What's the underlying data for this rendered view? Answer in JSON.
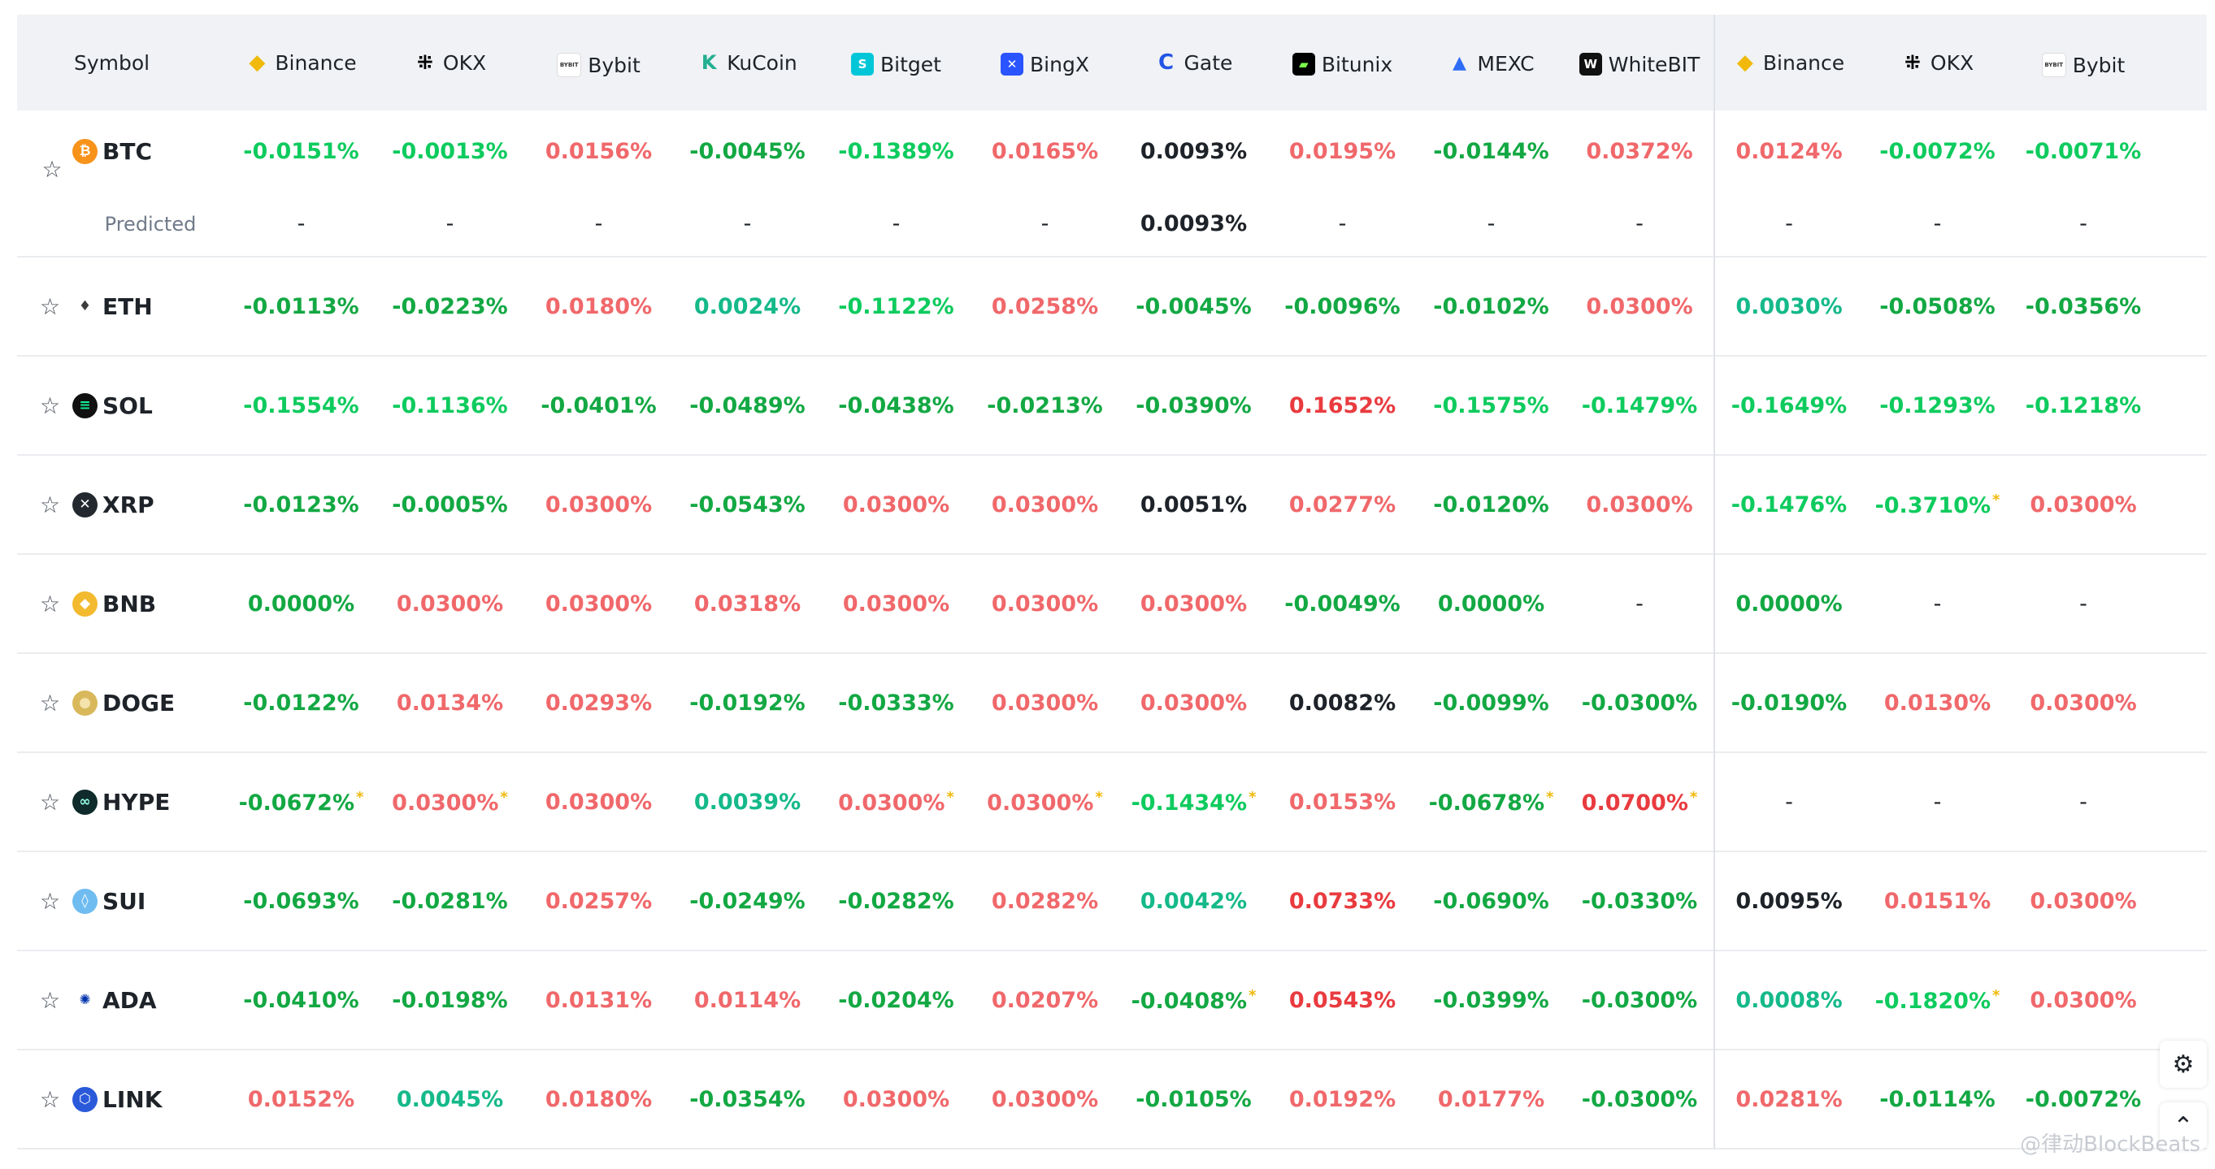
{
  "header": {
    "symbol_label": "Symbol",
    "exchanges": [
      {
        "name": "Binance",
        "icon": "binance-icon",
        "color": "#f0b90b",
        "glyph": "◆"
      },
      {
        "name": "OKX",
        "icon": "okx-icon",
        "color": "#000000",
        "glyph": "⁜"
      },
      {
        "name": "Bybit",
        "icon": "bybit-icon",
        "color": "#ffffff",
        "glyph": "BYBIT"
      },
      {
        "name": "KuCoin",
        "icon": "kucoin-icon",
        "color": "#23af91",
        "glyph": "K"
      },
      {
        "name": "Bitget",
        "icon": "bitget-icon",
        "color": "#00c6d8",
        "glyph": "S"
      },
      {
        "name": "BingX",
        "icon": "bingx-icon",
        "color": "#2a54ff",
        "glyph": "✕"
      },
      {
        "name": "Gate",
        "icon": "gate-icon",
        "color": "#2354e6",
        "glyph": "C"
      },
      {
        "name": "Bitunix",
        "icon": "bitunix-icon",
        "color": "#000000",
        "glyph": "▰"
      },
      {
        "name": "MEXC",
        "icon": "mexc-icon",
        "color": "#2f6cf6",
        "glyph": "▲"
      },
      {
        "name": "WhiteBIT",
        "icon": "whitebit-icon",
        "color": "#111111",
        "glyph": "W"
      },
      {
        "name": "Binance",
        "icon": "binance-icon",
        "color": "#f0b90b",
        "glyph": "◆"
      },
      {
        "name": "OKX",
        "icon": "okx-icon",
        "color": "#000000",
        "glyph": "⁜"
      },
      {
        "name": "Bybit",
        "icon": "bybit-icon",
        "color": "#ffffff",
        "glyph": "BYBIT"
      }
    ]
  },
  "colors": {
    "negative": "#0ecb5e",
    "negative_dark": "#13a843",
    "teal": "#15b98a",
    "positive": "#f0686b",
    "positive_dark": "#e93b3f",
    "neutral": "#1e2329",
    "marker": "#f0b90b"
  },
  "btc": {
    "symbol": "BTC",
    "icon": "bitcoin-icon",
    "icon_color": "#f7931a",
    "values": [
      {
        "v": "-0.0151%",
        "c": "neg"
      },
      {
        "v": "-0.0013%",
        "c": "neg"
      },
      {
        "v": "0.0156%",
        "c": "pos"
      },
      {
        "v": "-0.0045%",
        "c": "negd"
      },
      {
        "v": "-0.1389%",
        "c": "neg"
      },
      {
        "v": "0.0165%",
        "c": "pos"
      },
      {
        "v": "0.0093%",
        "c": "neutral"
      },
      {
        "v": "0.0195%",
        "c": "pos"
      },
      {
        "v": "-0.0144%",
        "c": "negd"
      },
      {
        "v": "0.0372%",
        "c": "pos"
      },
      {
        "v": "0.0124%",
        "c": "pos"
      },
      {
        "v": "-0.0072%",
        "c": "neg"
      },
      {
        "v": "-0.0071%",
        "c": "neg"
      }
    ],
    "predicted_label": "Predicted",
    "predicted": [
      "-",
      "-",
      "-",
      "-",
      "-",
      "-",
      "0.0093%",
      "-",
      "-",
      "-",
      "-",
      "-",
      "-"
    ]
  },
  "rows": [
    {
      "symbol": "ETH",
      "icon": "ethereum-icon",
      "icon_color": "#ffffff",
      "glyph": "♦",
      "glyph_color": "#3c3c3d",
      "values": [
        {
          "v": "-0.0113%",
          "c": "negd"
        },
        {
          "v": "-0.0223%",
          "c": "negd"
        },
        {
          "v": "0.0180%",
          "c": "pos"
        },
        {
          "v": "0.0024%",
          "c": "teal"
        },
        {
          "v": "-0.1122%",
          "c": "neg"
        },
        {
          "v": "0.0258%",
          "c": "pos"
        },
        {
          "v": "-0.0045%",
          "c": "negd"
        },
        {
          "v": "-0.0096%",
          "c": "negd"
        },
        {
          "v": "-0.0102%",
          "c": "negd"
        },
        {
          "v": "0.0300%",
          "c": "pos"
        },
        {
          "v": "0.0030%",
          "c": "teal"
        },
        {
          "v": "-0.0508%",
          "c": "negd"
        },
        {
          "v": "-0.0356%",
          "c": "negd"
        }
      ]
    },
    {
      "symbol": "SOL",
      "icon": "solana-icon",
      "icon_color": "#111111",
      "glyph": "≡",
      "glyph_color": "#14f195",
      "values": [
        {
          "v": "-0.1554%",
          "c": "neg"
        },
        {
          "v": "-0.1136%",
          "c": "neg"
        },
        {
          "v": "-0.0401%",
          "c": "negd"
        },
        {
          "v": "-0.0489%",
          "c": "negd"
        },
        {
          "v": "-0.0438%",
          "c": "negd"
        },
        {
          "v": "-0.0213%",
          "c": "negd"
        },
        {
          "v": "-0.0390%",
          "c": "negd"
        },
        {
          "v": "0.1652%",
          "c": "posd"
        },
        {
          "v": "-0.1575%",
          "c": "neg"
        },
        {
          "v": "-0.1479%",
          "c": "neg"
        },
        {
          "v": "-0.1649%",
          "c": "neg"
        },
        {
          "v": "-0.1293%",
          "c": "neg"
        },
        {
          "v": "-0.1218%",
          "c": "neg"
        }
      ]
    },
    {
      "symbol": "XRP",
      "icon": "xrp-icon",
      "icon_color": "#23292f",
      "glyph": "✕",
      "glyph_color": "#ffffff",
      "values": [
        {
          "v": "-0.0123%",
          "c": "negd"
        },
        {
          "v": "-0.0005%",
          "c": "negd"
        },
        {
          "v": "0.0300%",
          "c": "pos"
        },
        {
          "v": "-0.0543%",
          "c": "negd"
        },
        {
          "v": "0.0300%",
          "c": "pos"
        },
        {
          "v": "0.0300%",
          "c": "pos"
        },
        {
          "v": "0.0051%",
          "c": "neutral"
        },
        {
          "v": "0.0277%",
          "c": "pos"
        },
        {
          "v": "-0.0120%",
          "c": "negd"
        },
        {
          "v": "0.0300%",
          "c": "pos"
        },
        {
          "v": "-0.1476%",
          "c": "neg"
        },
        {
          "v": "-0.3710%",
          "c": "neg",
          "m": "*"
        },
        {
          "v": "0.0300%",
          "c": "pos"
        }
      ]
    },
    {
      "symbol": "BNB",
      "icon": "bnb-icon",
      "icon_color": "#f3ba2f",
      "glyph": "◆",
      "glyph_color": "#ffffff",
      "values": [
        {
          "v": "0.0000%",
          "c": "negd"
        },
        {
          "v": "0.0300%",
          "c": "pos"
        },
        {
          "v": "0.0300%",
          "c": "pos"
        },
        {
          "v": "0.0318%",
          "c": "pos"
        },
        {
          "v": "0.0300%",
          "c": "pos"
        },
        {
          "v": "0.0300%",
          "c": "pos"
        },
        {
          "v": "0.0300%",
          "c": "pos"
        },
        {
          "v": "-0.0049%",
          "c": "negd"
        },
        {
          "v": "0.0000%",
          "c": "negd"
        },
        {
          "v": "-",
          "c": "dash"
        },
        {
          "v": "0.0000%",
          "c": "negd"
        },
        {
          "v": "-",
          "c": "dash"
        },
        {
          "v": "-",
          "c": "dash"
        }
      ]
    },
    {
      "symbol": "DOGE",
      "icon": "doge-icon",
      "icon_color": "#d8b85a",
      "glyph": "●",
      "glyph_color": "#f4e3ad",
      "values": [
        {
          "v": "-0.0122%",
          "c": "negd"
        },
        {
          "v": "0.0134%",
          "c": "pos"
        },
        {
          "v": "0.0293%",
          "c": "pos"
        },
        {
          "v": "-0.0192%",
          "c": "negd"
        },
        {
          "v": "-0.0333%",
          "c": "negd"
        },
        {
          "v": "0.0300%",
          "c": "pos"
        },
        {
          "v": "0.0300%",
          "c": "pos"
        },
        {
          "v": "0.0082%",
          "c": "neutral"
        },
        {
          "v": "-0.0099%",
          "c": "negd"
        },
        {
          "v": "-0.0300%",
          "c": "negd"
        },
        {
          "v": "-0.0190%",
          "c": "negd"
        },
        {
          "v": "0.0130%",
          "c": "pos"
        },
        {
          "v": "0.0300%",
          "c": "pos"
        }
      ]
    },
    {
      "symbol": "HYPE",
      "icon": "hype-icon",
      "icon_color": "#0f2b2c",
      "glyph": "∞",
      "glyph_color": "#97fce4",
      "values": [
        {
          "v": "-0.0672%",
          "c": "negd",
          "m": "*"
        },
        {
          "v": "0.0300%",
          "c": "pos",
          "m": "*"
        },
        {
          "v": "0.0300%",
          "c": "pos"
        },
        {
          "v": "0.0039%",
          "c": "teal"
        },
        {
          "v": "0.0300%",
          "c": "pos",
          "m": "*"
        },
        {
          "v": "0.0300%",
          "c": "pos",
          "m": "*"
        },
        {
          "v": "-0.1434%",
          "c": "neg",
          "m": "*"
        },
        {
          "v": "0.0153%",
          "c": "pos"
        },
        {
          "v": "-0.0678%",
          "c": "negd",
          "m": "*"
        },
        {
          "v": "0.0700%",
          "c": "posd",
          "m": "*"
        },
        {
          "v": "-",
          "c": "dash"
        },
        {
          "v": "-",
          "c": "dash"
        },
        {
          "v": "-",
          "c": "dash"
        }
      ]
    },
    {
      "symbol": "SUI",
      "icon": "sui-icon",
      "icon_color": "#6fbcf0",
      "glyph": "◊",
      "glyph_color": "#ffffff",
      "values": [
        {
          "v": "-0.0693%",
          "c": "negd"
        },
        {
          "v": "-0.0281%",
          "c": "negd"
        },
        {
          "v": "0.0257%",
          "c": "pos"
        },
        {
          "v": "-0.0249%",
          "c": "negd"
        },
        {
          "v": "-0.0282%",
          "c": "negd"
        },
        {
          "v": "0.0282%",
          "c": "pos"
        },
        {
          "v": "0.0042%",
          "c": "teal"
        },
        {
          "v": "0.0733%",
          "c": "posd"
        },
        {
          "v": "-0.0690%",
          "c": "negd"
        },
        {
          "v": "-0.0330%",
          "c": "negd"
        },
        {
          "v": "0.0095%",
          "c": "neutral"
        },
        {
          "v": "0.0151%",
          "c": "pos"
        },
        {
          "v": "0.0300%",
          "c": "pos"
        }
      ]
    },
    {
      "symbol": "ADA",
      "icon": "cardano-icon",
      "icon_color": "#ffffff",
      "glyph": "✺",
      "glyph_color": "#0033ad",
      "values": [
        {
          "v": "-0.0410%",
          "c": "negd"
        },
        {
          "v": "-0.0198%",
          "c": "negd"
        },
        {
          "v": "0.0131%",
          "c": "pos"
        },
        {
          "v": "0.0114%",
          "c": "pos"
        },
        {
          "v": "-0.0204%",
          "c": "negd"
        },
        {
          "v": "0.0207%",
          "c": "pos"
        },
        {
          "v": "-0.0408%",
          "c": "negd",
          "m": "*"
        },
        {
          "v": "0.0543%",
          "c": "posd"
        },
        {
          "v": "-0.0399%",
          "c": "negd"
        },
        {
          "v": "-0.0300%",
          "c": "negd"
        },
        {
          "v": "0.0008%",
          "c": "teal"
        },
        {
          "v": "-0.1820%",
          "c": "neg",
          "m": "*"
        },
        {
          "v": "0.0300%",
          "c": "pos"
        }
      ]
    },
    {
      "symbol": "LINK",
      "icon": "chainlink-icon",
      "icon_color": "#2a5ada",
      "glyph": "⬡",
      "glyph_color": "#ffffff",
      "values": [
        {
          "v": "0.0152%",
          "c": "pos"
        },
        {
          "v": "0.0045%",
          "c": "teal"
        },
        {
          "v": "0.0180%",
          "c": "pos"
        },
        {
          "v": "-0.0354%",
          "c": "negd"
        },
        {
          "v": "0.0300%",
          "c": "pos"
        },
        {
          "v": "0.0300%",
          "c": "pos"
        },
        {
          "v": "-0.0105%",
          "c": "negd"
        },
        {
          "v": "0.0192%",
          "c": "pos"
        },
        {
          "v": "0.0177%",
          "c": "pos"
        },
        {
          "v": "-0.0300%",
          "c": "negd"
        },
        {
          "v": "0.0281%",
          "c": "pos"
        },
        {
          "v": "-0.0114%",
          "c": "negd"
        },
        {
          "v": "-0.0072%",
          "c": "negd"
        }
      ]
    }
  ],
  "floating": {
    "settings_icon": "settings-gear-icon",
    "back_to_top_icon": "chevron-up-icon"
  },
  "watermark": "@律动BlockBeats"
}
